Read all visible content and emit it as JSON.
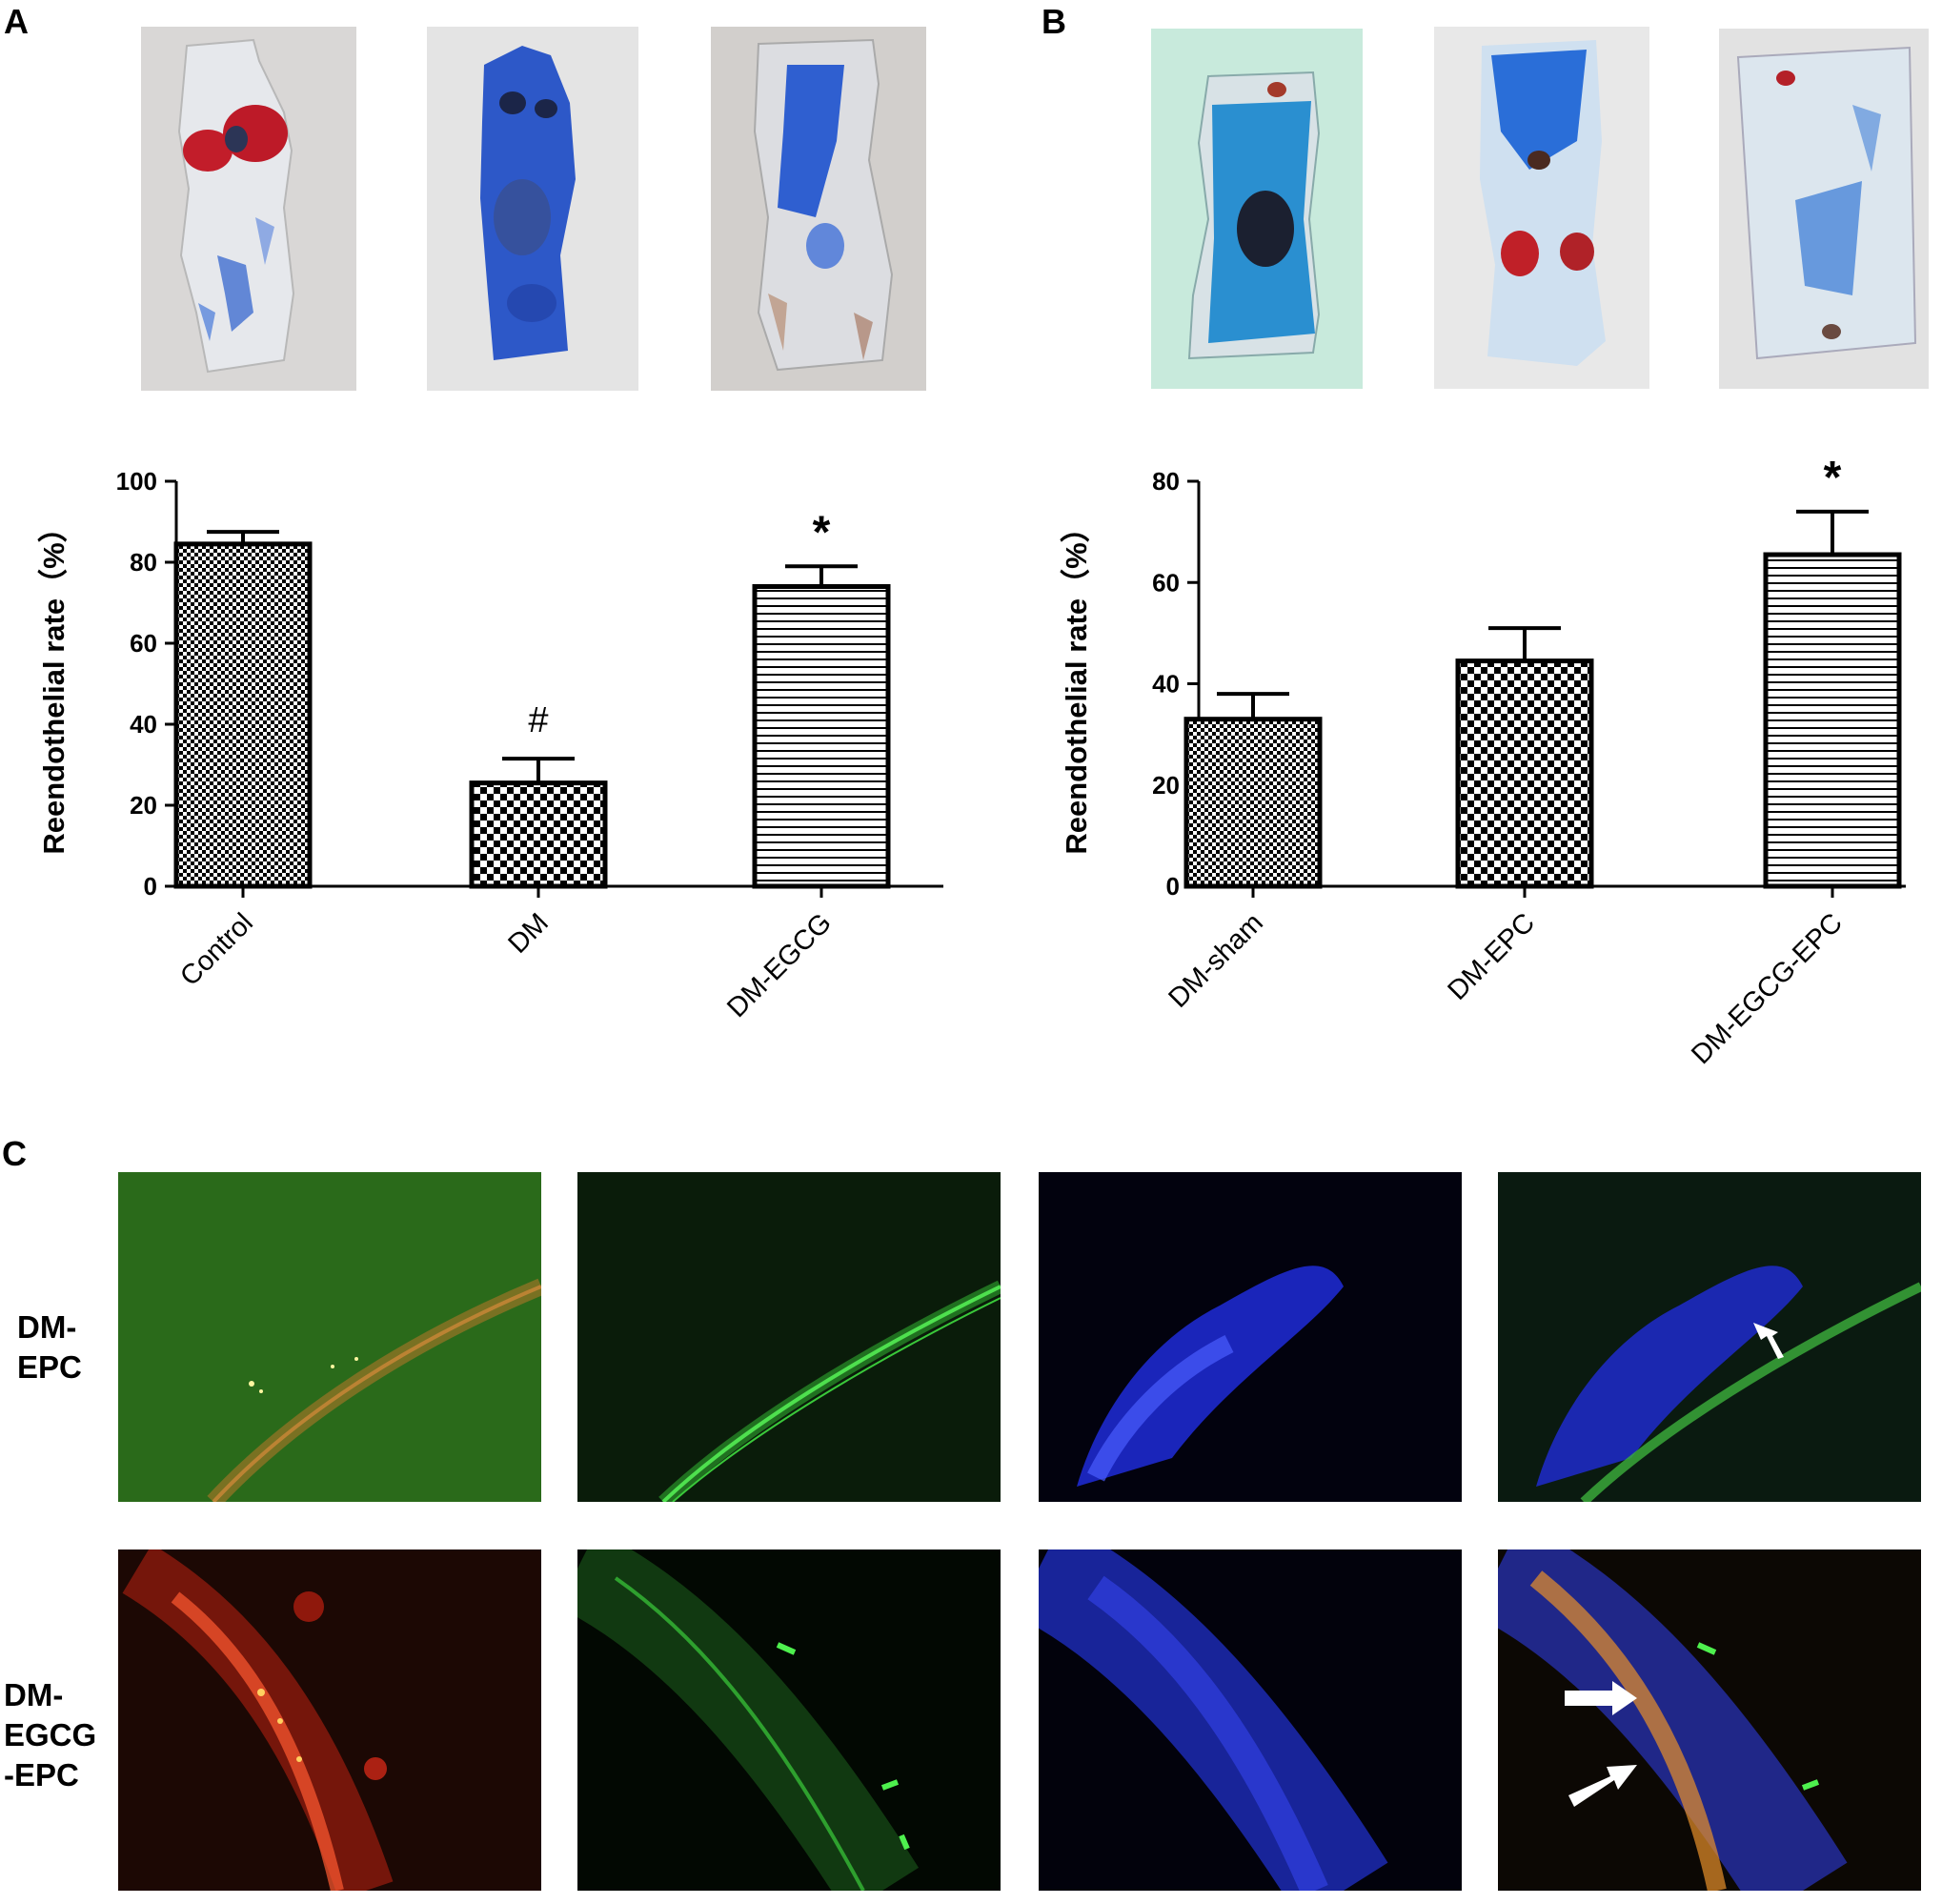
{
  "panels": {
    "a_label": "A",
    "b_label": "B",
    "c_label": "C"
  },
  "row_labels": {
    "row1": [
      "DM-",
      "EPC"
    ],
    "row2": [
      "DM-",
      "EGCG",
      "-EPC"
    ]
  },
  "chart_data": [
    {
      "type": "bar",
      "categories": [
        "Control",
        "DM",
        "DM-EGCG"
      ],
      "values": [
        84.5,
        25.5,
        74
      ],
      "errors": [
        3,
        6,
        5
      ],
      "annotations": [
        "",
        "#",
        "*"
      ],
      "patterns": [
        "fine-check",
        "check",
        "hstripe"
      ],
      "ylabel": "Reendothelial rate（%）",
      "ylim": [
        0,
        100
      ],
      "yticks": [
        0,
        20,
        40,
        60,
        80,
        100
      ],
      "grid": false,
      "legend": "none"
    },
    {
      "type": "bar",
      "categories": [
        "DM-sham",
        "DM-EPC",
        "DM-EGCG-EPC"
      ],
      "values": [
        33,
        44.5,
        65.5
      ],
      "errors": [
        5,
        6.5,
        8.5
      ],
      "annotations": [
        "",
        "",
        "*"
      ],
      "patterns": [
        "fine-check",
        "check",
        "hstripe"
      ],
      "ylabel": "Reendothelial rate（%）",
      "ylim": [
        0,
        80
      ],
      "yticks": [
        0,
        20,
        40,
        60,
        80
      ],
      "grid": false,
      "legend": "none"
    }
  ],
  "colors": {
    "ink": "#000000",
    "vessel_blue": "#2f5fd0",
    "vessel_red": "#c8202c",
    "fluor_red": "#ff3a20",
    "fluor_green": "#35e035",
    "fluor_blue": "#2a36ff"
  }
}
